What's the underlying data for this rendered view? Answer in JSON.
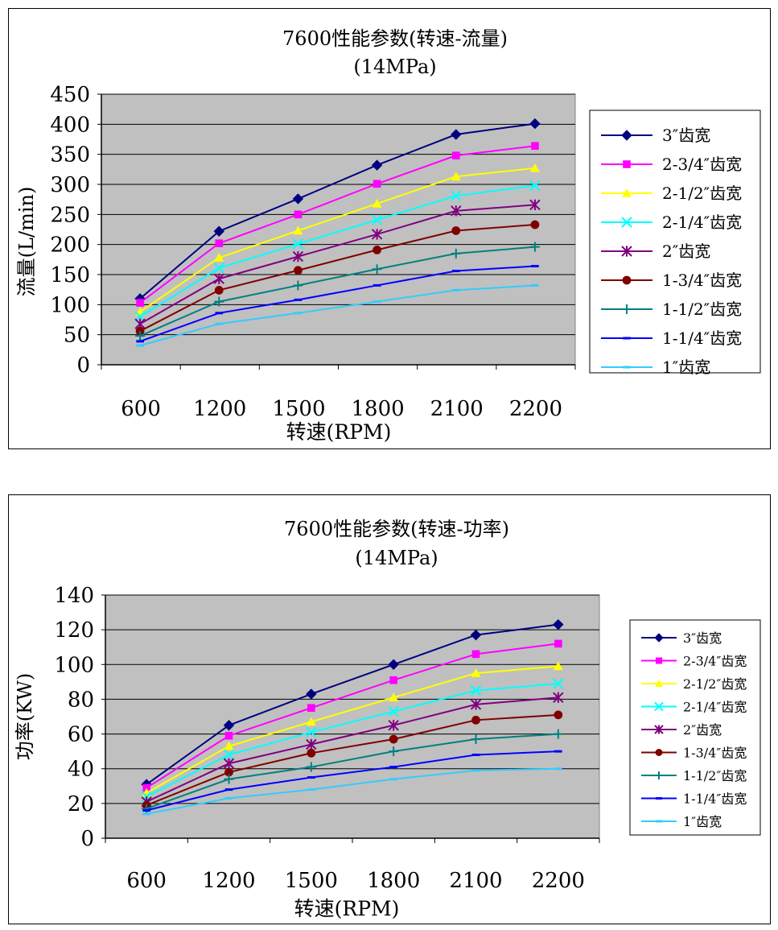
{
  "chart_data": [
    {
      "type": "line",
      "title": "7600性能参数(转速-流量)",
      "subtitle": "(14MPa)",
      "xlabel": "转速(RPM)",
      "ylabel": "流量(L/min)",
      "categories": [
        "600",
        "1200",
        "1500",
        "1800",
        "2100",
        "2200"
      ],
      "yticks": [
        "0",
        "50",
        "100",
        "150",
        "200",
        "250",
        "300",
        "350",
        "400",
        "450"
      ],
      "ylim": [
        0,
        450
      ],
      "grid": true,
      "plot_background": "#c0c0c0",
      "legend_position": "right",
      "series": [
        {
          "name": "3″齿宽",
          "color": "#000080",
          "marker": "diamond",
          "values": [
            110,
            222,
            276,
            332,
            383,
            401
          ]
        },
        {
          "name": "2-3/4″齿宽",
          "color": "#ff00ff",
          "marker": "square",
          "values": [
            103,
            202,
            250,
            301,
            348,
            364
          ]
        },
        {
          "name": "2-1/2″齿宽",
          "color": "#ffff00",
          "marker": "triangle",
          "values": [
            88,
            178,
            223,
            268,
            313,
            327
          ]
        },
        {
          "name": "2-1/4″齿宽",
          "color": "#00ffff",
          "marker": "x",
          "values": [
            80,
            161,
            201,
            241,
            281,
            298
          ]
        },
        {
          "name": "2″齿宽",
          "color": "#800080",
          "marker": "star",
          "values": [
            68,
            143,
            180,
            217,
            256,
            266
          ]
        },
        {
          "name": "1-3/4″齿宽",
          "color": "#800000",
          "marker": "circle",
          "values": [
            56,
            124,
            157,
            191,
            223,
            233
          ]
        },
        {
          "name": "1-1/2″齿宽",
          "color": "#008080",
          "marker": "plus",
          "values": [
            48,
            105,
            132,
            159,
            185,
            196
          ]
        },
        {
          "name": "1-1/4″齿宽",
          "color": "#0000ff",
          "marker": "dash",
          "values": [
            39,
            86,
            108,
            132,
            156,
            164
          ]
        },
        {
          "name": "1″齿宽",
          "color": "#33ccff",
          "marker": "dash",
          "values": [
            32,
            68,
            86,
            105,
            124,
            132
          ]
        }
      ]
    },
    {
      "type": "line",
      "title": "7600性能参数(转速-功率)",
      "subtitle": "(14MPa)",
      "xlabel": "转速(RPM)",
      "ylabel": "功率(KW)",
      "categories": [
        "600",
        "1200",
        "1500",
        "1800",
        "2100",
        "2200"
      ],
      "yticks": [
        "0",
        "20",
        "40",
        "60",
        "80",
        "100",
        "120",
        "140"
      ],
      "ylim": [
        0,
        140
      ],
      "grid": true,
      "plot_background": "#c0c0c0",
      "legend_position": "right",
      "series": [
        {
          "name": "3″齿宽",
          "color": "#000080",
          "marker": "diamond",
          "values": [
            31,
            65,
            83,
            100,
            117,
            123
          ]
        },
        {
          "name": "2-3/4″齿宽",
          "color": "#ff00ff",
          "marker": "square",
          "values": [
            29,
            59,
            75,
            91,
            106,
            112
          ]
        },
        {
          "name": "2-1/2″齿宽",
          "color": "#ffff00",
          "marker": "triangle",
          "values": [
            26,
            53,
            67,
            81,
            95,
            99
          ]
        },
        {
          "name": "2-1/4″齿宽",
          "color": "#00ffff",
          "marker": "x",
          "values": [
            24,
            48,
            61,
            73,
            85,
            89
          ]
        },
        {
          "name": "2″齿宽",
          "color": "#800080",
          "marker": "star",
          "values": [
            21,
            43,
            54,
            65,
            77,
            81
          ]
        },
        {
          "name": "1-3/4″齿宽",
          "color": "#800000",
          "marker": "circle",
          "values": [
            19,
            38,
            49,
            57,
            68,
            71
          ]
        },
        {
          "name": "1-1/2″齿宽",
          "color": "#008080",
          "marker": "plus",
          "values": [
            17,
            34,
            41,
            50,
            57,
            60
          ]
        },
        {
          "name": "1-1/4″齿宽",
          "color": "#0000ff",
          "marker": "dash",
          "values": [
            16,
            28,
            35,
            41,
            48,
            50
          ]
        },
        {
          "name": "1″齿宽",
          "color": "#33ccff",
          "marker": "dash",
          "values": [
            14,
            23,
            28,
            34,
            39,
            40
          ]
        }
      ]
    }
  ]
}
